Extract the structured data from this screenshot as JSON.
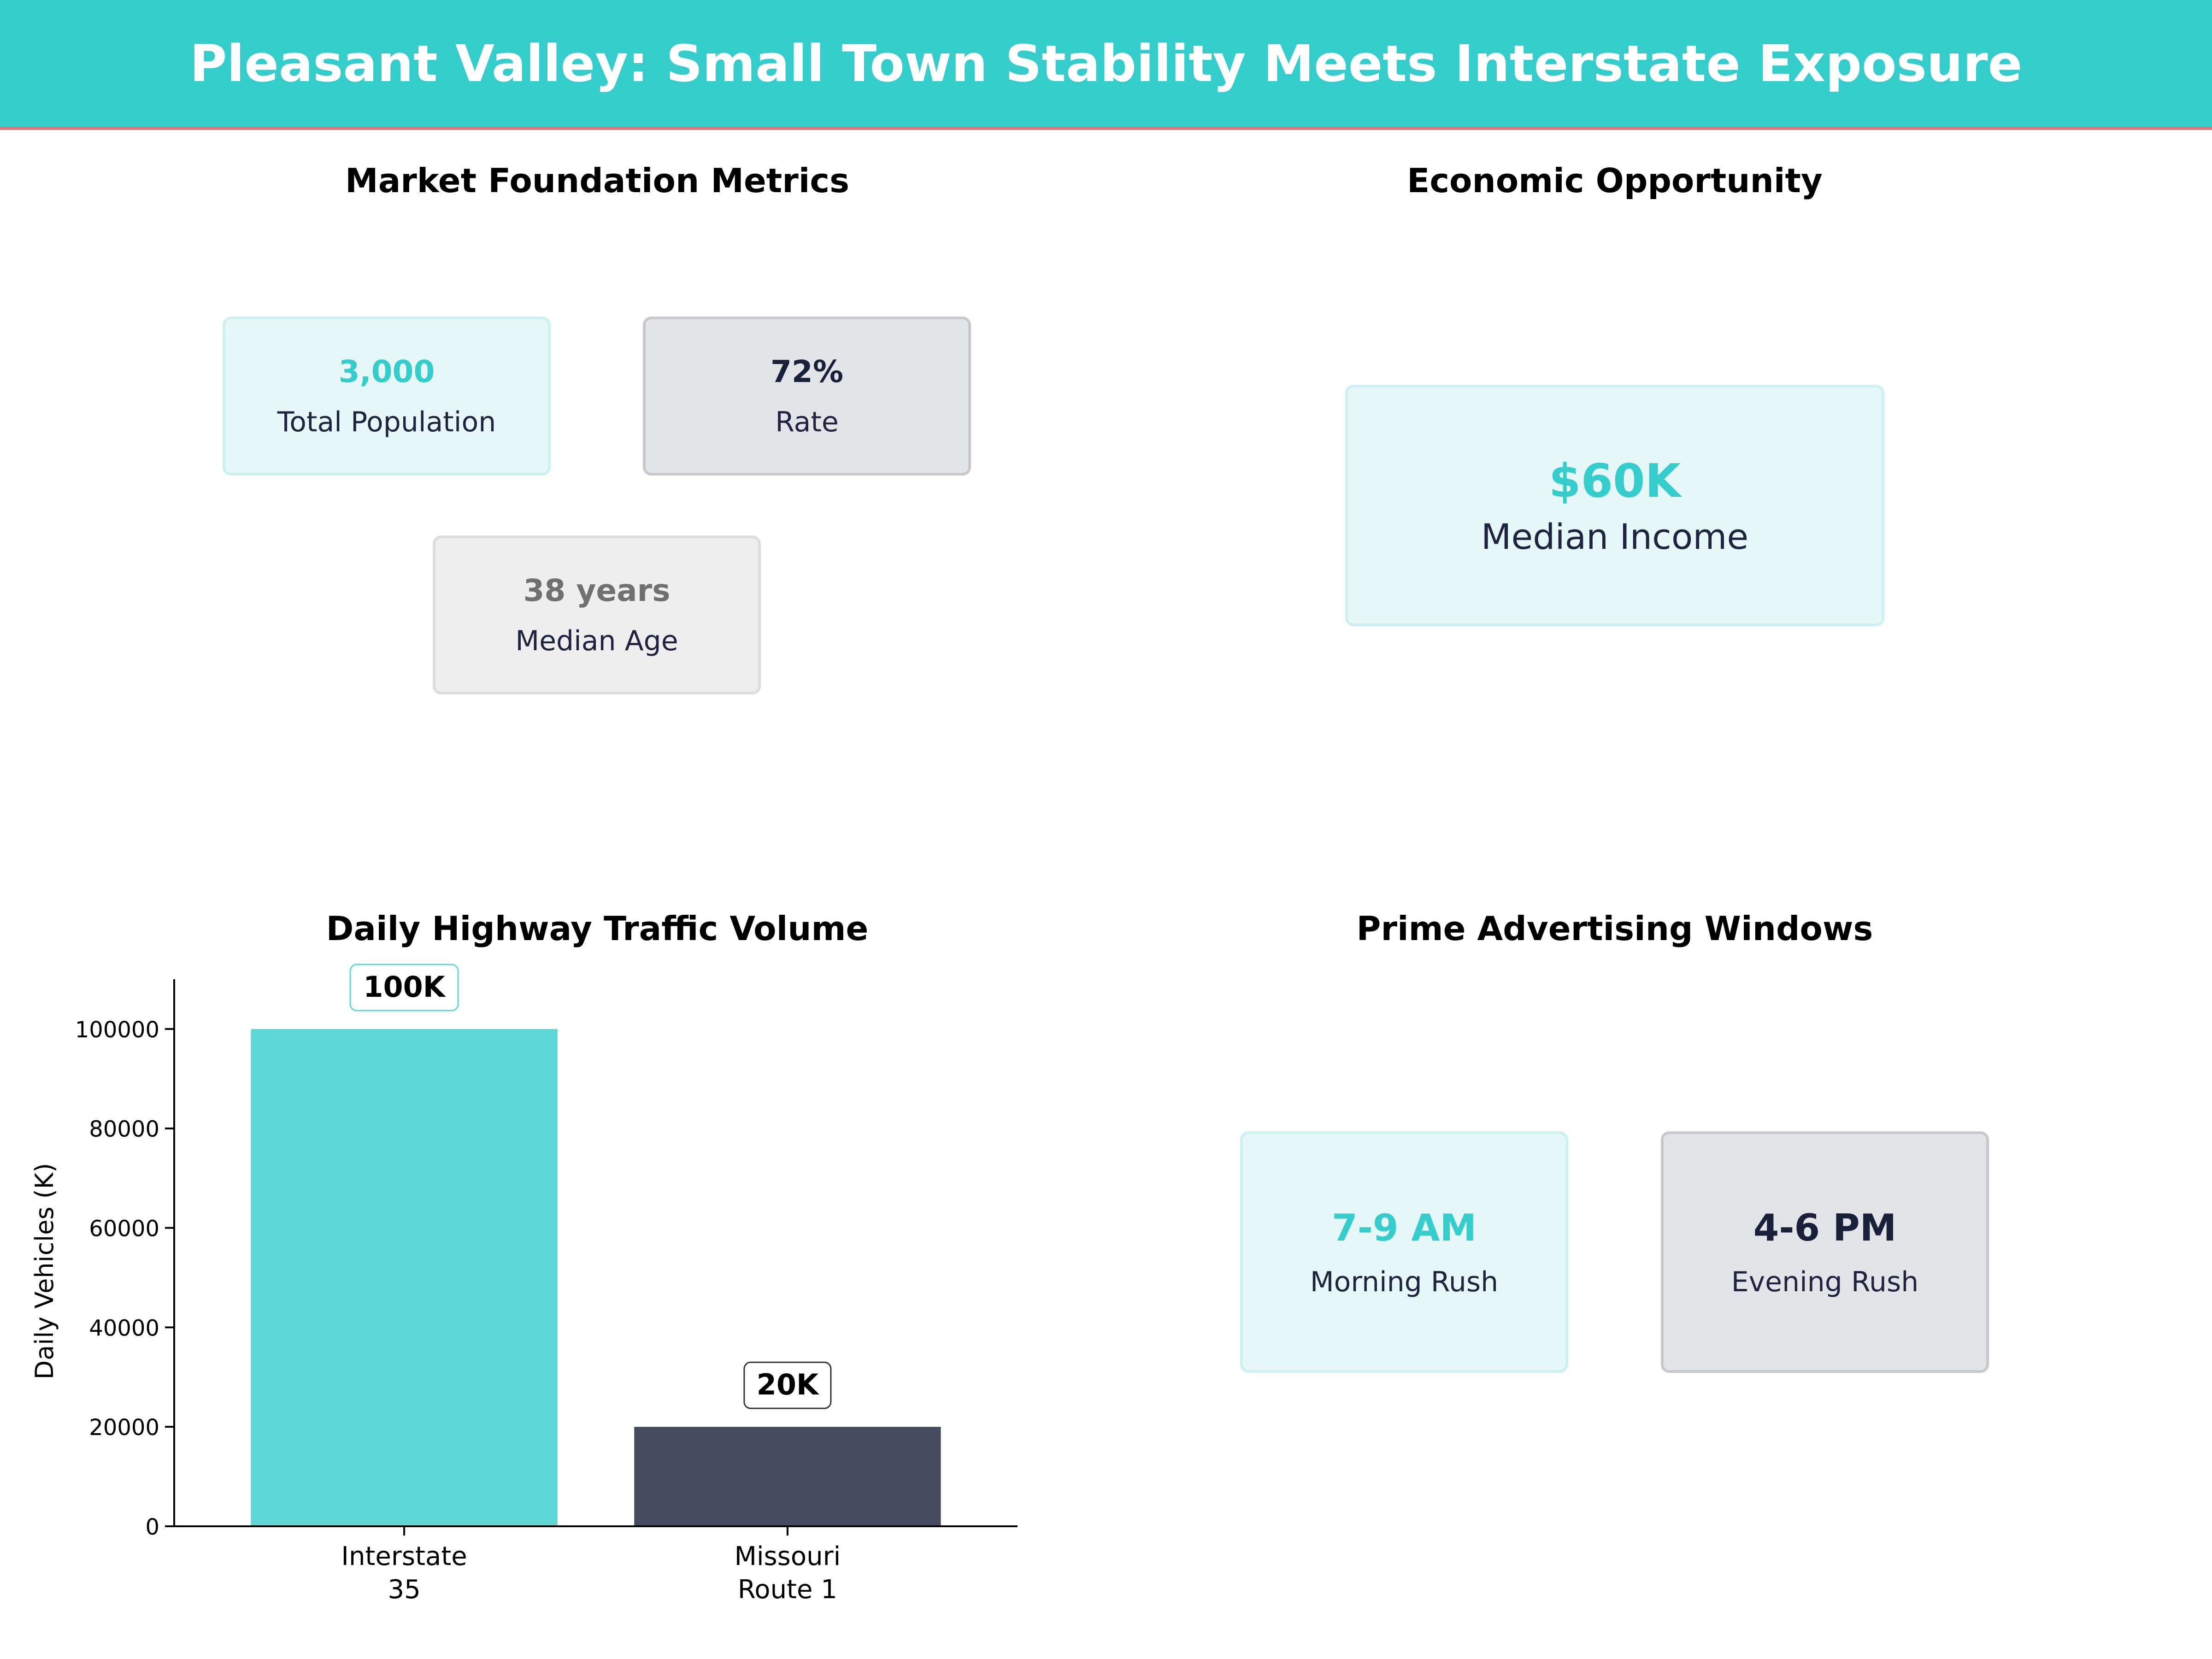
{
  "title": "Pleasant Valley: Small Town Stability Meets Interstate Exposure",
  "market": {
    "title": "Market Foundation Metrics",
    "cards": [
      {
        "value": "3,000",
        "label": "Total Population"
      },
      {
        "value": "72%",
        "label": "Rate"
      },
      {
        "value": "38 years",
        "label": "Median Age"
      }
    ]
  },
  "economic": {
    "title": "Economic Opportunity",
    "card": {
      "value": "$60K",
      "label": "Median Income"
    }
  },
  "advertising": {
    "title": "Prime Advertising Windows",
    "cards": [
      {
        "value": "7-9 AM",
        "label": "Morning Rush"
      },
      {
        "value": "4-6 PM",
        "label": "Evening Rush"
      }
    ]
  },
  "colors": {
    "accent_teal": "#35cccc",
    "bar_teal": "#5ed8d6",
    "bar_slate": "#464b62",
    "header_border": "#e57373"
  },
  "chart_data": {
    "type": "bar",
    "title": "Daily Highway Traffic Volume",
    "ylabel": "Daily Vehicles (K)",
    "xlabel": "",
    "categories": [
      [
        "Interstate",
        "35"
      ],
      [
        "Missouri",
        "Route 1"
      ]
    ],
    "values": [
      100000,
      20000
    ],
    "data_labels": [
      "100K",
      "20K"
    ],
    "bar_colors": [
      "#5ed8d6",
      "#464b62"
    ],
    "ylim": [
      0,
      110000
    ],
    "yticks": [
      0,
      20000,
      40000,
      60000,
      80000,
      100000
    ],
    "grid": false
  }
}
